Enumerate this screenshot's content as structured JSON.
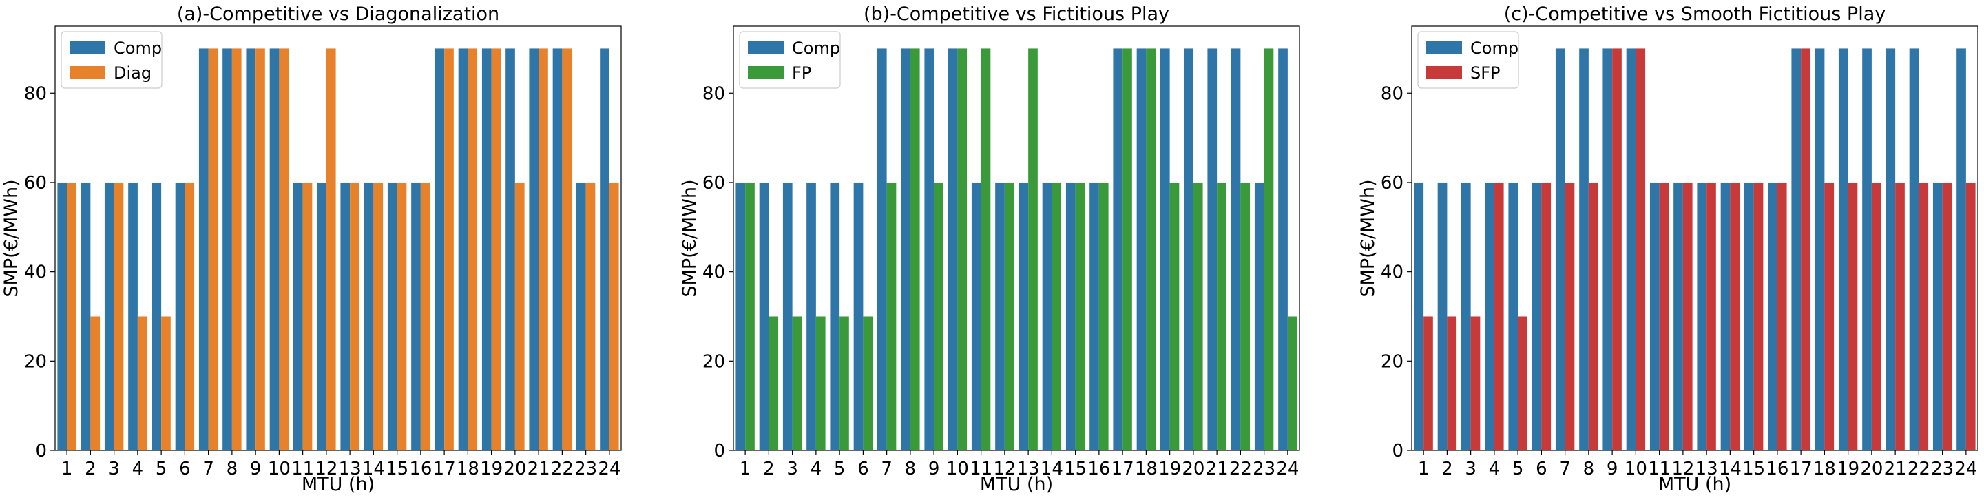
{
  "chart_data": [
    {
      "type": "bar",
      "title": "(a)-Competitive vs Diagonalization",
      "xlabel": "MTU (h)",
      "ylabel": "SMP(€/MWh)",
      "ylim": [
        0,
        95
      ],
      "yticks": [
        0,
        20,
        40,
        60,
        80
      ],
      "grid": false,
      "legend": "top-left",
      "categories": [
        "1",
        "2",
        "3",
        "4",
        "5",
        "6",
        "7",
        "8",
        "9",
        "10",
        "11",
        "12",
        "13",
        "14",
        "15",
        "16",
        "17",
        "18",
        "19",
        "20",
        "21",
        "22",
        "23",
        "24"
      ],
      "series": [
        {
          "name": "Comp",
          "color": "#2e75a8",
          "values": [
            60,
            60,
            60,
            60,
            60,
            60,
            90,
            90,
            90,
            90,
            60,
            60,
            60,
            60,
            60,
            60,
            90,
            90,
            90,
            90,
            90,
            90,
            60,
            90
          ]
        },
        {
          "name": "Diag",
          "color": "#e8822a",
          "values": [
            60,
            30,
            60,
            30,
            30,
            60,
            90,
            90,
            90,
            90,
            60,
            90,
            60,
            60,
            60,
            60,
            90,
            90,
            90,
            60,
            90,
            90,
            60,
            60
          ]
        }
      ]
    },
    {
      "type": "bar",
      "title": "(b)-Competitive vs Fictitious Play",
      "xlabel": "MTU (h)",
      "ylabel": "SMP(€/MWh)",
      "ylim": [
        0,
        95
      ],
      "yticks": [
        0,
        20,
        40,
        60,
        80
      ],
      "grid": false,
      "legend": "top-left",
      "categories": [
        "1",
        "2",
        "3",
        "4",
        "5",
        "6",
        "7",
        "8",
        "9",
        "10",
        "11",
        "12",
        "13",
        "14",
        "15",
        "16",
        "17",
        "18",
        "19",
        "20",
        "21",
        "22",
        "23",
        "24"
      ],
      "series": [
        {
          "name": "Comp",
          "color": "#2e75a8",
          "values": [
            60,
            60,
            60,
            60,
            60,
            60,
            90,
            90,
            90,
            90,
            60,
            60,
            60,
            60,
            60,
            60,
            90,
            90,
            90,
            90,
            90,
            90,
            60,
            90
          ]
        },
        {
          "name": "FP",
          "color": "#3a9a3a",
          "values": [
            60,
            30,
            30,
            30,
            30,
            30,
            60,
            90,
            60,
            90,
            90,
            60,
            90,
            60,
            60,
            60,
            90,
            90,
            60,
            60,
            60,
            60,
            90,
            30
          ]
        }
      ]
    },
    {
      "type": "bar",
      "title": "(c)-Competitive vs Smooth Fictitious Play",
      "xlabel": "MTU (h)",
      "ylabel": "SMP(€/MWh)",
      "ylim": [
        0,
        95
      ],
      "yticks": [
        0,
        20,
        40,
        60,
        80
      ],
      "grid": false,
      "legend": "top-left",
      "categories": [
        "1",
        "2",
        "3",
        "4",
        "5",
        "6",
        "7",
        "8",
        "9",
        "10",
        "11",
        "12",
        "13",
        "14",
        "15",
        "16",
        "17",
        "18",
        "19",
        "20",
        "21",
        "22",
        "23",
        "24"
      ],
      "series": [
        {
          "name": "Comp",
          "color": "#2e75a8",
          "values": [
            60,
            60,
            60,
            60,
            60,
            60,
            90,
            90,
            90,
            90,
            60,
            60,
            60,
            60,
            60,
            60,
            90,
            90,
            90,
            90,
            90,
            90,
            60,
            90
          ]
        },
        {
          "name": "SFP",
          "color": "#c83a3a",
          "values": [
            30,
            30,
            30,
            60,
            30,
            60,
            60,
            60,
            90,
            90,
            60,
            60,
            60,
            60,
            60,
            60,
            90,
            60,
            60,
            60,
            60,
            60,
            60,
            60
          ]
        }
      ]
    }
  ]
}
